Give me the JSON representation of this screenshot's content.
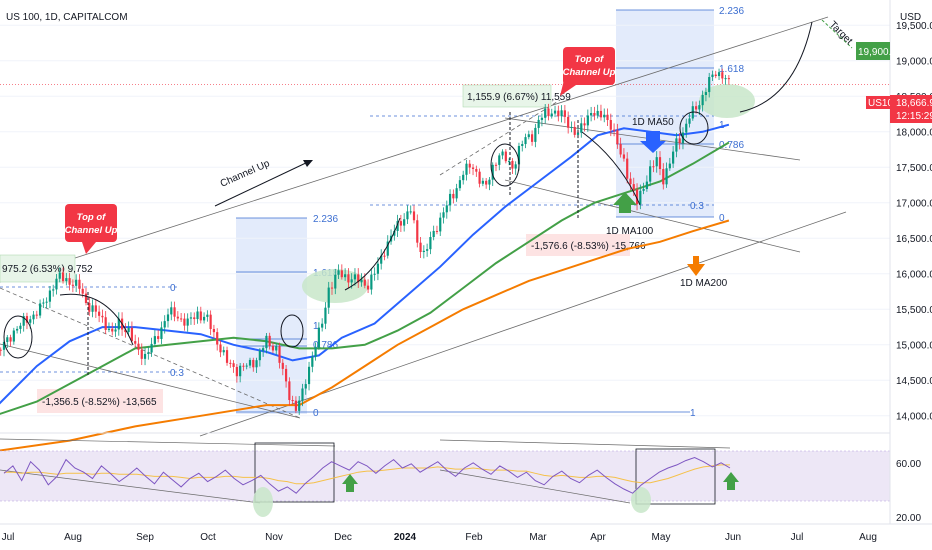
{
  "header": {
    "symbol": "US 100, 1D, CAPITALCOM",
    "currency": "USD"
  },
  "chart_data": {
    "type": "candlestick",
    "y_axis_ticks": [
      "19,500.0",
      "19,000.0",
      "18,500.0",
      "18,000.0",
      "17,500.0",
      "17,000.0",
      "16,500.0",
      "16,000.0",
      "15,500.0",
      "15,000.0",
      "14,500.0",
      "14,000.0"
    ],
    "x_axis_ticks": [
      "Jul",
      "Aug",
      "Sep",
      "Oct",
      "Nov",
      "Dec",
      "2024",
      "Feb",
      "Mar",
      "Apr",
      "May",
      "Jun",
      "Jul",
      "Aug"
    ],
    "ylim": [
      13800,
      19800
    ],
    "price_tag": {
      "symbol": "US100",
      "value": "18,666.9",
      "countdown": "12:15:29",
      "y": 18666.9
    },
    "target_tag": {
      "label": "19,900.0",
      "y": 19900
    },
    "close_path": [
      [
        -3,
        14850
      ],
      [
        1,
        15050
      ],
      [
        3,
        15200
      ],
      [
        7,
        15350
      ],
      [
        11,
        15500
      ],
      [
        13,
        15650
      ],
      [
        15,
        15850
      ],
      [
        17,
        15950
      ],
      [
        20,
        15900
      ],
      [
        23,
        15800
      ],
      [
        25,
        15600
      ],
      [
        28,
        15450
      ],
      [
        31,
        15300
      ],
      [
        33,
        15150
      ],
      [
        35,
        15300
      ],
      [
        38,
        15200
      ],
      [
        40,
        14950
      ],
      [
        43,
        14850
      ],
      [
        46,
        15050
      ],
      [
        50,
        15450
      ],
      [
        53,
        15400
      ],
      [
        56,
        15300
      ],
      [
        59,
        15450
      ],
      [
        62,
        15350
      ],
      [
        65,
        15050
      ],
      [
        68,
        14750
      ],
      [
        71,
        14650
      ],
      [
        74,
        14700
      ],
      [
        77,
        14800
      ],
      [
        80,
        15050
      ],
      [
        83,
        14950
      ],
      [
        85,
        14600
      ],
      [
        87,
        14300
      ],
      [
        89,
        14100
      ],
      [
        91,
        14300
      ],
      [
        93,
        14700
      ],
      [
        95,
        15000
      ],
      [
        97,
        15300
      ],
      [
        99,
        15800
      ],
      [
        102,
        16000
      ],
      [
        105,
        15950
      ],
      [
        108,
        15900
      ],
      [
        111,
        15850
      ],
      [
        113,
        16000
      ],
      [
        116,
        16350
      ],
      [
        119,
        16600
      ],
      [
        121,
        16750
      ],
      [
        124,
        16900
      ],
      [
        126,
        16450
      ],
      [
        128,
        16300
      ],
      [
        131,
        16550
      ],
      [
        134,
        16900
      ],
      [
        137,
        17100
      ],
      [
        140,
        17450
      ],
      [
        143,
        17500
      ],
      [
        145,
        17350
      ],
      [
        147,
        17200
      ],
      [
        149,
        17500
      ],
      [
        151,
        17700
      ],
      [
        153,
        17600
      ],
      [
        155,
        17500
      ],
      [
        157,
        17750
      ],
      [
        159,
        17900
      ],
      [
        161,
        17950
      ],
      [
        163,
        18150
      ],
      [
        165,
        18250
      ],
      [
        167,
        18300
      ],
      [
        169,
        18250
      ],
      [
        171,
        18200
      ],
      [
        173,
        18050
      ],
      [
        175,
        17950
      ],
      [
        177,
        18150
      ],
      [
        179,
        18300
      ],
      [
        181,
        18200
      ],
      [
        183,
        18250
      ],
      [
        185,
        18100
      ],
      [
        187,
        17800
      ],
      [
        189,
        17600
      ],
      [
        191,
        17250
      ],
      [
        193,
        17000
      ],
      [
        195,
        17250
      ],
      [
        197,
        17450
      ],
      [
        199,
        17600
      ],
      [
        201,
        17350
      ],
      [
        203,
        17550
      ],
      [
        205,
        17850
      ],
      [
        207,
        18000
      ],
      [
        209,
        18200
      ],
      [
        211,
        18350
      ],
      [
        213,
        18500
      ],
      [
        215,
        18700
      ],
      [
        217,
        18850
      ],
      [
        219,
        18800
      ],
      [
        221,
        18670
      ]
    ],
    "series": [
      {
        "name": "1D MA50",
        "color": "#2962ff",
        "points": [
          [
            -3,
            14100
          ],
          [
            10,
            14700
          ],
          [
            20,
            15050
          ],
          [
            30,
            15250
          ],
          [
            40,
            15250
          ],
          [
            50,
            15200
          ],
          [
            60,
            15150
          ],
          [
            70,
            15000
          ],
          [
            80,
            14900
          ],
          [
            88,
            14780
          ],
          [
            96,
            14850
          ],
          [
            103,
            15100
          ],
          [
            113,
            15300
          ],
          [
            123,
            15700
          ],
          [
            133,
            16100
          ],
          [
            143,
            16550
          ],
          [
            153,
            16950
          ],
          [
            163,
            17300
          ],
          [
            173,
            17650
          ],
          [
            181,
            17950
          ],
          [
            189,
            18050
          ],
          [
            197,
            18000
          ],
          [
            205,
            17950
          ],
          [
            213,
            18000
          ],
          [
            221,
            18100
          ]
        ]
      },
      {
        "name": "1D MA100",
        "color": "#43a047",
        "points": [
          [
            -3,
            14000
          ],
          [
            10,
            14200
          ],
          [
            20,
            14450
          ],
          [
            30,
            14700
          ],
          [
            40,
            14950
          ],
          [
            50,
            15000
          ],
          [
            60,
            15050
          ],
          [
            70,
            15100
          ],
          [
            80,
            15050
          ],
          [
            90,
            14950
          ],
          [
            100,
            14950
          ],
          [
            110,
            15000
          ],
          [
            120,
            15200
          ],
          [
            130,
            15450
          ],
          [
            140,
            15800
          ],
          [
            150,
            16150
          ],
          [
            160,
            16450
          ],
          [
            170,
            16750
          ],
          [
            180,
            17000
          ],
          [
            190,
            17150
          ],
          [
            200,
            17300
          ],
          [
            210,
            17550
          ],
          [
            221,
            17850
          ]
        ]
      },
      {
        "name": "1D MA200",
        "color": "#f57c00",
        "points": [
          [
            -3,
            13500
          ],
          [
            20,
            13650
          ],
          [
            40,
            13850
          ],
          [
            60,
            14000
          ],
          [
            80,
            14150
          ],
          [
            90,
            14150
          ],
          [
            100,
            14400
          ],
          [
            110,
            14700
          ],
          [
            120,
            15000
          ],
          [
            130,
            15250
          ],
          [
            140,
            15500
          ],
          [
            150,
            15700
          ],
          [
            160,
            15900
          ],
          [
            170,
            16050
          ],
          [
            180,
            16200
          ],
          [
            190,
            16350
          ],
          [
            200,
            16450
          ],
          [
            210,
            16600
          ],
          [
            221,
            16750
          ]
        ]
      }
    ]
  },
  "fib_levels_1": [
    "2.236",
    "1.618",
    "1",
    "0.786",
    "0.3",
    "0"
  ],
  "fib_levels_2": [
    "2.236",
    "1.618",
    "1",
    "0.786",
    "0.3",
    "0",
    "1"
  ],
  "annotations": {
    "channel_up": "Channel Up",
    "target": "Target",
    "top_channel_1": "Top of Channel Up",
    "top_channel_2": "Top of Channel Up",
    "ma50_label": "1D MA50",
    "ma100_label": "1D MA100",
    "ma200_label": "1D MA200",
    "box1": "975.2 (6.53%) 9,752",
    "box2": "-1,356.5 (-8.52%) -13,565",
    "box3": "1,155.9 (6.67%) 11,559",
    "box4": "-1,576.6 (-8.53%) -15,766"
  },
  "rsi": {
    "y_ticks": [
      "60.00",
      "20.00"
    ],
    "values": [
      55,
      62,
      48,
      66,
      58,
      44,
      52,
      68,
      60,
      56,
      50,
      62,
      55,
      47,
      53,
      60,
      52,
      45,
      56,
      49,
      42,
      50,
      55,
      47,
      52,
      58,
      50,
      44,
      48,
      53,
      45,
      38,
      42,
      36,
      45,
      52,
      60,
      66,
      62,
      58,
      66,
      62,
      55,
      62,
      68,
      60,
      64,
      56,
      61,
      66,
      58,
      52,
      60,
      65,
      59,
      54,
      62,
      57,
      51,
      56,
      48,
      44,
      52,
      57,
      50,
      46,
      53,
      58,
      51,
      45,
      40,
      36,
      44,
      50,
      56,
      60,
      63,
      67,
      70,
      66,
      61,
      65,
      60
    ],
    "ma": [
      56,
      56,
      55,
      56,
      56,
      55,
      54,
      55,
      55,
      55,
      54,
      55,
      55,
      54,
      54,
      54,
      53,
      52,
      52,
      52,
      51,
      50,
      51,
      51,
      51,
      52,
      52,
      51,
      51,
      51,
      50,
      48,
      47,
      45,
      45,
      46,
      48,
      50,
      52,
      54,
      56,
      57,
      57,
      58,
      59,
      60,
      60,
      60,
      60,
      61,
      60,
      59,
      59,
      60,
      59,
      58,
      58,
      58,
      57,
      57,
      55,
      53,
      52,
      53,
      52,
      51,
      51,
      52,
      52,
      51,
      49,
      47,
      46,
      46,
      48,
      50,
      53,
      56,
      59,
      61,
      62,
      63,
      63
    ],
    "colors": {
      "rsi": "#7e57c2",
      "ma": "#f5c14a"
    }
  },
  "colors": {
    "up": "#089981",
    "down": "#f23645",
    "channel": "#6b6b6b",
    "fib_box": "#e3ebfb",
    "fib_text": "#3d6fd1",
    "highlight": "#c8e6c9",
    "callout": "#f23645"
  }
}
